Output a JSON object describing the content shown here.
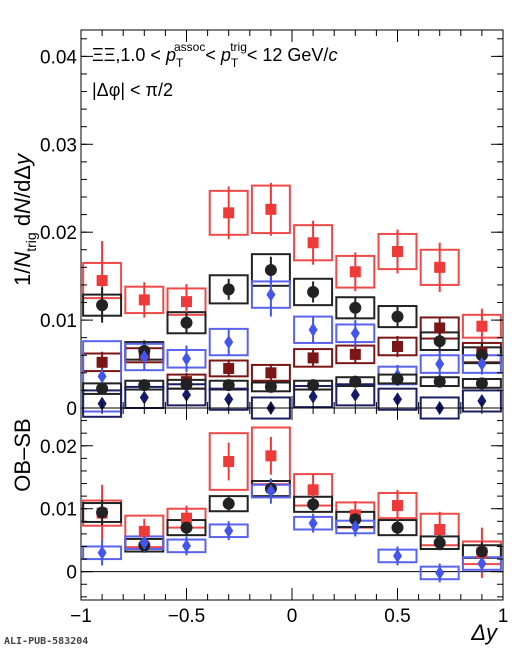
{
  "figure": {
    "watermark": "ALI-PUB-583204",
    "colors": {
      "red": "#ef3a3a",
      "dark_red": "#7a1616",
      "black": "#222222",
      "blue": "#4455ee",
      "navy": "#161a6a",
      "box_red": "#ef4a4a",
      "box_blue": "#5a63ee",
      "box_navy": "#1b1f60"
    }
  },
  "chart_data": [
    {
      "panel": "top",
      "type": "scatter",
      "ylabel": "1/N_trig dN/dΔy",
      "ylim": [
        0,
        0.043
      ],
      "xlim": [
        -1,
        1
      ],
      "y_ticks": [
        {
          "v": 0,
          "label": "0"
        },
        {
          "v": 0.01,
          "label": "0.01"
        },
        {
          "v": 0.02,
          "label": "0.02"
        },
        {
          "v": 0.03,
          "label": "0.03"
        },
        {
          "v": 0.04,
          "label": "0.04"
        }
      ],
      "legend_line1": "ΞΞ,1.0 < p_T^assoc < p_T^trig < 12 GeV/c",
      "legend_line2": "|Δφ| < π/2",
      "x": [
        -0.9,
        -0.7,
        -0.5,
        -0.3,
        -0.1,
        0.1,
        0.3,
        0.5,
        0.7,
        0.9
      ],
      "series": [
        {
          "marker": "square",
          "color": "red",
          "y": [
            0.0145,
            0.0123,
            0.0121,
            0.0222,
            0.0226,
            0.0188,
            0.0155,
            0.0178,
            0.016,
            0.0093
          ],
          "stat": [
            0.0045,
            0.002,
            0.002,
            0.003,
            0.003,
            0.0025,
            0.0022,
            0.0025,
            0.0028,
            0.002
          ],
          "sys": [
            0.002,
            0.0015,
            0.0015,
            0.0025,
            0.0027,
            0.002,
            0.0018,
            0.002,
            0.002,
            0.0013
          ]
        },
        {
          "marker": "square",
          "color": "dark_red",
          "y": [
            0.0052,
            0.006,
            0.003,
            0.0045,
            0.004,
            0.0057,
            0.0061,
            0.007,
            0.0091,
            0.0063
          ],
          "stat": [
            0.0012,
            0.001,
            0.001,
            0.001,
            0.001,
            0.001,
            0.001,
            0.0012,
            0.0012,
            0.0012
          ],
          "sys": [
            0.001,
            0.0008,
            0.0008,
            0.0009,
            0.0009,
            0.001,
            0.001,
            0.001,
            0.0012,
            0.0011
          ]
        },
        {
          "marker": "circle",
          "color": "black",
          "y": [
            0.0117,
            0.0065,
            0.0097,
            0.0135,
            0.0157,
            0.0132,
            0.0114,
            0.0104,
            0.0076,
            0.006
          ],
          "stat": [
            0.002,
            0.0012,
            0.0012,
            0.0012,
            0.0015,
            0.0012,
            0.0012,
            0.0012,
            0.0012,
            0.0015
          ],
          "sys": [
            0.0012,
            0.001,
            0.0012,
            0.0016,
            0.0018,
            0.0015,
            0.0012,
            0.0012,
            0.001,
            0.0009
          ]
        },
        {
          "marker": "diamond",
          "color": "blue",
          "y": [
            0.0036,
            0.0058,
            0.0056,
            0.0075,
            0.0129,
            0.0089,
            0.0085,
            0.0037,
            0.005,
            0.005
          ],
          "stat": [
            0.0015,
            0.0015,
            0.0015,
            0.0015,
            0.0025,
            0.0015,
            0.0015,
            0.0012,
            0.0015,
            0.0012
          ],
          "sys": [
            0.004,
            0.0015,
            0.001,
            0.0015,
            0.0015,
            0.0015,
            0.001,
            0.001,
            0.001,
            0.001
          ]
        },
        {
          "marker": "circle",
          "color": "black",
          "y": [
            0.0022,
            0.0026,
            0.0027,
            0.0026,
            0.0024,
            0.0026,
            0.003,
            0.0033,
            0.003,
            0.0028
          ],
          "stat": [
            0.0006,
            0.0005,
            0.0005,
            0.0005,
            0.0005,
            0.0005,
            0.0005,
            0.0005,
            0.0005,
            0.0005
          ],
          "sys": [
            0.0006,
            0.0005,
            0.0005,
            0.0005,
            0.0005,
            0.0005,
            0.0005,
            0.0005,
            0.0005,
            0.0005
          ]
        },
        {
          "marker": "diamond",
          "color": "navy",
          "y": [
            0.0005,
            0.0012,
            0.0015,
            0.001,
            0.0,
            0.0013,
            0.0015,
            0.001,
            0.0,
            0.0008
          ],
          "stat": [
            0.0005,
            0.0005,
            0.0005,
            0.0005,
            0.0005,
            0.0005,
            0.0005,
            0.0005,
            0.0005,
            0.0005
          ],
          "sys": [
            0.0015,
            0.0012,
            0.0012,
            0.0012,
            0.0012,
            0.0012,
            0.0012,
            0.0012,
            0.0012,
            0.0012
          ]
        }
      ]
    },
    {
      "panel": "bottom",
      "type": "scatter",
      "ylabel": "OB–SB",
      "xlabel": "Δy",
      "xlim": [
        -1,
        1
      ],
      "ylim": [
        -0.0045,
        0.026
      ],
      "y_ticks": [
        {
          "v": 0,
          "label": "0"
        },
        {
          "v": 0.01,
          "label": "0.01"
        },
        {
          "v": 0.02,
          "label": "0.02"
        }
      ],
      "x_ticks": [
        {
          "v": -1,
          "label": "−1"
        },
        {
          "v": -0.5,
          "label": "−0.5"
        },
        {
          "v": 0,
          "label": "0"
        },
        {
          "v": 0.5,
          "label": "0.5"
        },
        {
          "v": 1,
          "label": "1"
        }
      ],
      "x": [
        -0.9,
        -0.7,
        -0.5,
        -0.3,
        -0.1,
        0.1,
        0.3,
        0.5,
        0.7,
        0.9
      ],
      "series": [
        {
          "marker": "square",
          "color": "red",
          "y": [
            0.0093,
            0.0064,
            0.0085,
            0.0175,
            0.0184,
            0.013,
            0.009,
            0.0105,
            0.0067,
            0.003
          ],
          "stat": [
            0.0045,
            0.002,
            0.002,
            0.003,
            0.003,
            0.0025,
            0.0022,
            0.0025,
            0.0028,
            0.004
          ],
          "sys": [
            0.002,
            0.0025,
            0.0015,
            0.0045,
            0.0045,
            0.0025,
            0.002,
            0.002,
            0.0025,
            0.0018
          ]
        },
        {
          "marker": "circle",
          "color": "black",
          "y": [
            0.0094,
            0.0042,
            0.007,
            0.0108,
            0.0132,
            0.0107,
            0.0083,
            0.007,
            0.0046,
            0.0032
          ],
          "stat": [
            0.002,
            0.0012,
            0.0012,
            0.0012,
            0.0015,
            0.0012,
            0.0012,
            0.0012,
            0.0012,
            0.0015
          ],
          "sys": [
            0.0015,
            0.001,
            0.0012,
            0.0012,
            0.0012,
            0.0012,
            0.0012,
            0.0012,
            0.001,
            0.001
          ]
        },
        {
          "marker": "diamond",
          "color": "blue",
          "y": [
            0.003,
            0.0046,
            0.0041,
            0.0065,
            0.0128,
            0.0077,
            0.0071,
            0.0025,
            -0.0002,
            0.0013
          ],
          "stat": [
            0.002,
            0.0015,
            0.0015,
            0.0015,
            0.002,
            0.0015,
            0.0015,
            0.0015,
            0.0015,
            0.0015
          ],
          "sys": [
            0.001,
            0.001,
            0.001,
            0.001,
            0.001,
            0.001,
            0.001,
            0.001,
            0.001,
            0.001
          ]
        }
      ]
    }
  ]
}
